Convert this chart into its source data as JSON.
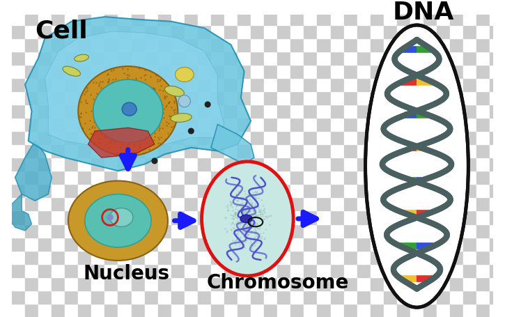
{
  "labels": {
    "cell": "Cell",
    "nucleus": "Nucleus",
    "chromosome": "Chromosome",
    "dna": "DNA"
  },
  "label_fontsize": 20,
  "label_fontsize_large": 26,
  "arrow_color": "#1a1aff",
  "cell_color": "#70c8e0",
  "cell_edge": "#3a9ec0",
  "nucleus_outer": "#d4a017",
  "nucleus_inner": "#40c0c0",
  "nucleus_core": "#c03030",
  "chromosome_oval_edge": "#e03030",
  "chromosome_bg": "#c0e8e4",
  "dna_backbone": "#4a6060",
  "dna_colors_left": [
    "#e03030",
    "#30a030",
    "#e03030",
    "#30a030",
    "#e03030",
    "#30a030",
    "#e03030",
    "#30a030",
    "#e03030"
  ],
  "dna_colors_right": [
    "#f0c030",
    "#3050e0",
    "#f0c030",
    "#3050e0",
    "#f0c030",
    "#3050e0",
    "#f0c030",
    "#3050e0",
    "#f0c030"
  ],
  "checkerboard_light": "#cccccc",
  "checkerboard_dark": "#ffffff",
  "figw": 7.25,
  "figh": 4.55,
  "dpi": 100
}
